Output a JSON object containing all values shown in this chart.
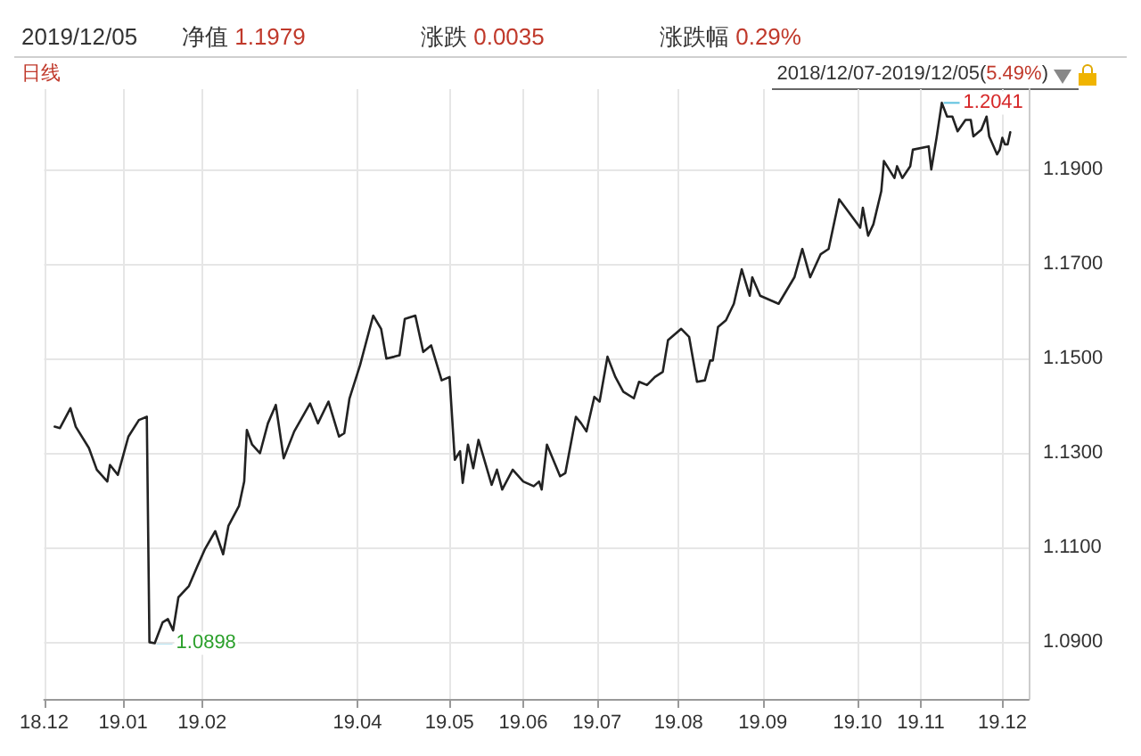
{
  "chart_data": {
    "type": "line",
    "title": "2019/12/05",
    "annotations": [
      "净值 1.1979",
      "涨跌 0.0035",
      "涨跌幅 0.29%",
      "日线",
      "2018/12/07-2019/12/05(5.49%)",
      {
        "text": "1.2041",
        "x": "2019-11-09",
        "y": 1.2041
      },
      {
        "text": "1.0898",
        "x": "2019-01-14",
        "y": 1.0898
      }
    ],
    "x": [
      "2018-12-07",
      "2018-12-09",
      "2018-12-13",
      "2018-12-15",
      "2018-12-20",
      "2018-12-23",
      "2018-12-27",
      "2018-12-28",
      "2018-12-31",
      "2019-01-04",
      "2019-01-08",
      "2019-01-11",
      "2019-01-12",
      "2019-01-14",
      "2019-01-17",
      "2019-01-19",
      "2019-01-21",
      "2019-01-23",
      "2019-01-27",
      "2019-01-30",
      "2019-02-02",
      "2019-02-06",
      "2019-02-09",
      "2019-02-11",
      "2019-02-15",
      "2019-02-17",
      "2019-02-18",
      "2019-02-20",
      "2019-02-23",
      "2019-02-26",
      "2019-03-01",
      "2019-03-04",
      "2019-03-08",
      "2019-03-14",
      "2019-03-17",
      "2019-03-21",
      "2019-03-25",
      "2019-03-27",
      "2019-03-29",
      "2019-04-02",
      "2019-04-07",
      "2019-04-10",
      "2019-04-12",
      "2019-04-15",
      "2019-04-17",
      "2019-04-19",
      "2019-04-23",
      "2019-04-26",
      "2019-04-29",
      "2019-05-03",
      "2019-05-06",
      "2019-05-08",
      "2019-05-10",
      "2019-05-11",
      "2019-05-13",
      "2019-05-15",
      "2019-05-17",
      "2019-05-22",
      "2019-05-24",
      "2019-05-26",
      "2019-05-30",
      "2019-06-03",
      "2019-06-07",
      "2019-06-09",
      "2019-06-10",
      "2019-06-12",
      "2019-06-17",
      "2019-06-19",
      "2019-06-23",
      "2019-06-25",
      "2019-06-27",
      "2019-06-30",
      "2019-07-02",
      "2019-07-05",
      "2019-07-08",
      "2019-07-11",
      "2019-07-15",
      "2019-07-17",
      "2019-07-20",
      "2019-07-23",
      "2019-07-26",
      "2019-07-28",
      "2019-08-02",
      "2019-08-05",
      "2019-08-08",
      "2019-08-11",
      "2019-08-13",
      "2019-08-14",
      "2019-08-16",
      "2019-08-19",
      "2019-08-22",
      "2019-08-25",
      "2019-08-28",
      "2019-08-29",
      "2019-09-01",
      "2019-09-08",
      "2019-09-14",
      "2019-09-17",
      "2019-09-20",
      "2019-09-24",
      "2019-09-27",
      "2019-10-01",
      "2019-10-09",
      "2019-10-10",
      "2019-10-12",
      "2019-10-14",
      "2019-10-17",
      "2019-10-18",
      "2019-10-22",
      "2019-10-23",
      "2019-10-25",
      "2019-10-28",
      "2019-10-29",
      "2019-11-04",
      "2019-11-05",
      "2019-11-07",
      "2019-11-09",
      "2019-11-11",
      "2019-11-13",
      "2019-11-15",
      "2019-11-18",
      "2019-11-20",
      "2019-11-21",
      "2019-11-24",
      "2019-11-26",
      "2019-11-27",
      "2019-11-30",
      "2019-12-01",
      "2019-12-02",
      "2019-12-03",
      "2019-12-04",
      "2019-12-05"
    ],
    "series": [
      {
        "color": "#222222",
        "values": [
          1.1356,
          1.1353,
          1.1395,
          1.1356,
          1.1311,
          1.1265,
          1.124,
          1.1275,
          1.1254,
          1.1335,
          1.137,
          1.1377,
          1.09,
          1.0898,
          1.0942,
          1.0949,
          1.0925,
          1.0995,
          1.1019,
          1.1058,
          1.1096,
          1.1135,
          1.1086,
          1.1146,
          1.1188,
          1.124,
          1.1349,
          1.1318,
          1.13,
          1.1363,
          1.1402,
          1.1289,
          1.1346,
          1.1405,
          1.1363,
          1.1409,
          1.1335,
          1.1342,
          1.1416,
          1.1486,
          1.1591,
          1.1563,
          1.15,
          1.1504,
          1.1507,
          1.1584,
          1.1591,
          1.1514,
          1.1528,
          1.1454,
          1.1461,
          1.1286,
          1.1304,
          1.1237,
          1.1318,
          1.1268,
          1.1328,
          1.1233,
          1.1265,
          1.1223,
          1.1265,
          1.124,
          1.123,
          1.124,
          1.1223,
          1.1318,
          1.1251,
          1.1258,
          1.1377,
          1.1363,
          1.1346,
          1.1419,
          1.1409,
          1.1504,
          1.1461,
          1.143,
          1.1416,
          1.1451,
          1.1444,
          1.1461,
          1.1472,
          1.1539,
          1.1563,
          1.1546,
          1.1451,
          1.1454,
          1.1496,
          1.1496,
          1.1567,
          1.1581,
          1.1616,
          1.1689,
          1.1633,
          1.1672,
          1.1633,
          1.1616,
          1.1672,
          1.1732,
          1.1672,
          1.1721,
          1.1732,
          1.1837,
          1.1777,
          1.1819,
          1.176,
          1.1784,
          1.1854,
          1.1918,
          1.1882,
          1.1907,
          1.1882,
          1.1907,
          1.1942,
          1.1949,
          1.19,
          1.1967,
          1.2041,
          1.2012,
          1.2012,
          1.1981,
          1.2005,
          1.2005,
          1.197,
          1.1984,
          1.2012,
          1.197,
          1.1932,
          1.1942,
          1.1967,
          1.1953,
          1.1953,
          1.1979
        ]
      }
    ],
    "xlim": [
      "2018-12-03",
      "2019-12-12"
    ],
    "xticks": [
      {
        "value": "2018-12-03",
        "label": "18.12"
      },
      {
        "value": "2019-01-02",
        "label": "19.01"
      },
      {
        "value": "2019-02-01",
        "label": "19.02"
      },
      {
        "value": "2019-04-01",
        "label": "19.04"
      },
      {
        "value": "2019-05-06",
        "label": "19.05"
      },
      {
        "value": "2019-06-03",
        "label": "19.06"
      },
      {
        "value": "2019-07-01",
        "label": "19.07"
      },
      {
        "value": "2019-08-01",
        "label": "19.08"
      },
      {
        "value": "2019-09-02",
        "label": "19.09"
      },
      {
        "value": "2019-10-08",
        "label": "19.10"
      },
      {
        "value": "2019-11-01",
        "label": "19.11"
      },
      {
        "value": "2019-12-02",
        "label": "19.12"
      }
    ],
    "ylim": [
      1.078,
      1.207
    ],
    "yticks": [
      {
        "value": 1.09,
        "label": "1.0900"
      },
      {
        "value": 1.11,
        "label": "1.1100"
      },
      {
        "value": 1.13,
        "label": "1.1300"
      },
      {
        "value": 1.15,
        "label": "1.1500"
      },
      {
        "value": 1.17,
        "label": "1.1700"
      },
      {
        "value": 1.19,
        "label": "1.1900"
      }
    ],
    "grid": true,
    "marker": "none",
    "line_style": "solid"
  }
}
